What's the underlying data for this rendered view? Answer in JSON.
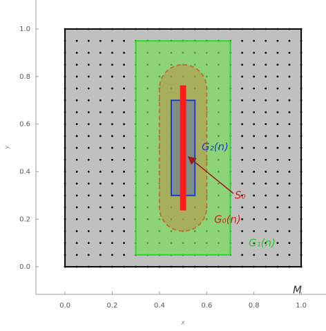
{
  "chart_data": {
    "type": "region",
    "x_label": "x",
    "y_label": "y",
    "xlim": [
      -0.123,
      1.105
    ],
    "ylim": [
      -0.116,
      1.122
    ],
    "xticks": [
      {
        "value": 0,
        "label": "0.0"
      },
      {
        "value": 0.2,
        "label": "0.2"
      },
      {
        "value": 0.4,
        "label": "0.4"
      },
      {
        "value": 0.6,
        "label": "0.6"
      },
      {
        "value": 0.8,
        "label": "0.8"
      },
      {
        "value": 1,
        "label": "1.0"
      }
    ],
    "yticks": [
      {
        "value": 0,
        "label": "0.0"
      },
      {
        "value": 0.2,
        "label": "0.2"
      },
      {
        "value": 0.4,
        "label": "0.4"
      },
      {
        "value": 0.6,
        "label": "0.6"
      },
      {
        "value": 0.8,
        "label": "0.8"
      },
      {
        "value": 1,
        "label": "1.0"
      }
    ],
    "lattice": {
      "step": 0.05,
      "xlim": [
        0,
        1
      ],
      "ylim": [
        0,
        1
      ],
      "color": "#000000"
    },
    "regions": [
      {
        "label": "M",
        "shape": "rect",
        "x": [
          0,
          1
        ],
        "y": [
          0,
          1
        ],
        "fill": "#c0c0c0",
        "stroke": "#000000",
        "text_color": "#333333"
      },
      {
        "label": "G₁(n)",
        "shape": "rect",
        "x": [
          0.3,
          0.7
        ],
        "y": [
          0.05,
          0.95
        ],
        "fill": "rgba(120,220,90,0.7)",
        "stroke": "#22dd22",
        "text_color": "#22cc22"
      },
      {
        "label": "G₀(n)",
        "shape": "stadium",
        "x": [
          0.4,
          0.6
        ],
        "y": [
          0.15,
          0.85
        ],
        "fill": "rgba(200,130,60,0.45)",
        "stroke": "#c0703a",
        "text_color": "#cc2222"
      },
      {
        "label": "G₂(n)",
        "shape": "rect",
        "x": [
          0.45,
          0.55
        ],
        "y": [
          0.3,
          0.7
        ],
        "fill": "#7f8f86",
        "stroke": "#1a3fd0",
        "text_color": "#1a3fd0"
      },
      {
        "label": "S₀",
        "shape": "rect",
        "x": [
          0.49,
          0.51
        ],
        "y": [
          0.24,
          0.76
        ],
        "fill": "#ff1a1a",
        "stroke": "#ff1a1a",
        "text_color": "#cc2222"
      }
    ]
  }
}
